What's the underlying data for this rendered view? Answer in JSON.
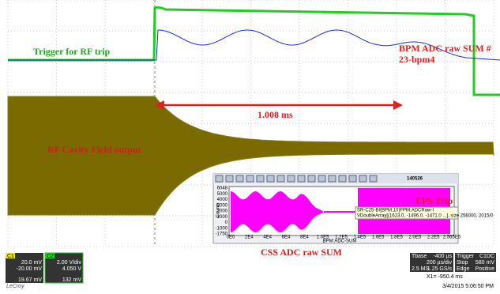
{
  "annotations": {
    "trigger": "Trigger for RF trip",
    "bpm_line1": "BPM ADC raw SUM #",
    "bpm_line2": "23-bpm4",
    "duration": "1.008 ms",
    "cavity": "RF Cavity Field output",
    "eps": "EPS Trip",
    "css": "CSS ADC raw SUM"
  },
  "inset": {
    "title": "140526",
    "y_label": "Counts",
    "x_label": "BPM:ADC-SUM",
    "yticks": [
      "6048",
      "5000",
      "4000",
      "3000",
      "2000",
      "1000",
      "0",
      "-1000",
      "-1750"
    ],
    "xticks": [
      "0E0",
      "2E4",
      "4E4",
      "6E4",
      "8E4",
      "1.0E5",
      "1.2E5",
      "1.4E5",
      "1.6E5",
      "1.8E5",
      "2.0E5",
      "2.2E5",
      "2.565E5"
    ],
    "tooltip_line1": "SR-C25-BI{BPM:10}FPM:ADCRaw-I",
    "tooltip_line2": "VDoubleArray[(1623.0, -1496.0, -1471.0 ...], size 256000, 2015/0"
  },
  "status": {
    "c1": {
      "name": "C1",
      "scale": "20.0 mV",
      "offset": "-20.00 mV",
      "reading": "19.67 mV"
    },
    "c2": {
      "name": "C2",
      "scale": "2.00 V/div",
      "offset": "4.050 V",
      "reading": "132 mV"
    },
    "timebase": {
      "label": "Tbase",
      "delay": "-400 µs",
      "div": "200 µs/div",
      "samples": "2.5 MS",
      "rate": "1.25 GS/s"
    },
    "trigger": {
      "label": "Trigger",
      "source": "C1DC",
      "mode": "Stop",
      "level": "580 mV",
      "type": "Edge",
      "slope": "Positive"
    },
    "cursor": "X1= -950.4 ms",
    "timestamp": "3/4/2015 5:06:50 PM",
    "brand": "LeCroy"
  }
}
